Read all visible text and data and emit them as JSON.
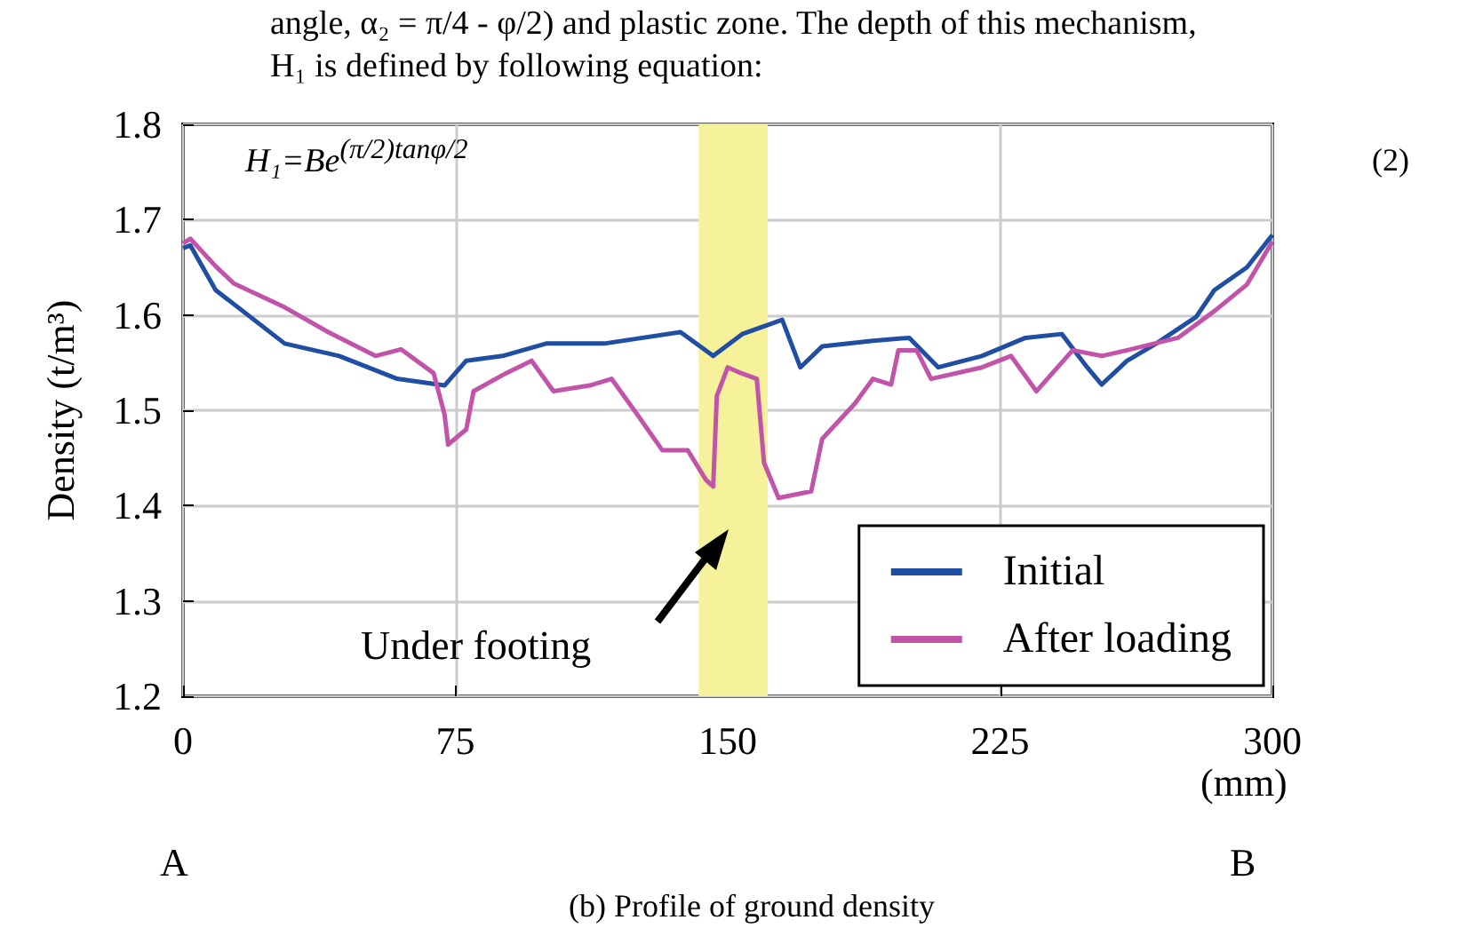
{
  "chart_data": {
    "type": "line",
    "xlabel": "(mm)",
    "ylabel": "Density (t/m³)",
    "xlim": [
      0,
      300
    ],
    "xticks": [
      0,
      75,
      150,
      225,
      300
    ],
    "ylim": [
      1.2,
      1.8
    ],
    "yticks": [
      1.2,
      1.3,
      1.4,
      1.5,
      1.6,
      1.7,
      1.8
    ],
    "grid": true,
    "legend": "bottom right",
    "marker": "none",
    "line_style": "solid",
    "series": [
      {
        "name": "Initial",
        "color": "#1f4ea3",
        "x": [
          0,
          2,
          9,
          28,
          43,
          59,
          72,
          78,
          88,
          100,
          116,
          137,
          146,
          154,
          165,
          170,
          176,
          190,
          200,
          208,
          220,
          232,
          242,
          249,
          253,
          260,
          268,
          279,
          284,
          293,
          300
        ],
        "values": [
          1.67,
          1.673,
          1.626,
          1.57,
          1.557,
          1.533,
          1.526,
          1.552,
          1.557,
          1.57,
          1.57,
          1.582,
          1.557,
          1.58,
          1.595,
          1.545,
          1.567,
          1.573,
          1.576,
          1.545,
          1.557,
          1.576,
          1.58,
          1.545,
          1.527,
          1.552,
          1.57,
          1.598,
          1.626,
          1.65,
          1.684
        ]
      },
      {
        "name": "After loading",
        "color": "#c153a8",
        "x": [
          0,
          2,
          9,
          14,
          28,
          40,
          53,
          60,
          69,
          72,
          73,
          78,
          80,
          89,
          96,
          102,
          112,
          118,
          125,
          132,
          139,
          144,
          146,
          147,
          150,
          153,
          158,
          160,
          164,
          173,
          176,
          185,
          190,
          195,
          197,
          202,
          206,
          220,
          228,
          235,
          245,
          253,
          260,
          274,
          284,
          293,
          300
        ],
        "values": [
          1.675,
          1.68,
          1.651,
          1.633,
          1.608,
          1.582,
          1.557,
          1.564,
          1.539,
          1.496,
          1.464,
          1.48,
          1.52,
          1.539,
          1.552,
          1.52,
          1.526,
          1.533,
          1.496,
          1.458,
          1.458,
          1.427,
          1.42,
          1.515,
          1.545,
          1.54,
          1.533,
          1.445,
          1.408,
          1.415,
          1.47,
          1.507,
          1.533,
          1.527,
          1.563,
          1.563,
          1.533,
          1.545,
          1.557,
          1.52,
          1.563,
          1.557,
          1.563,
          1.576,
          1.604,
          1.632,
          1.677
        ]
      }
    ],
    "bands": [
      {
        "axis": "x",
        "from": 142,
        "to": 161,
        "color": "#f6f29b"
      }
    ],
    "annotations": [
      "angle, α₂ = π/4 - φ/2) and plastic zone. The depth of this mechanism,",
      "H₁ is defined by following equation:",
      "H₁=Be$^{(π/2)tanφ/2}$",
      "(2)",
      "Under footing",
      "A",
      "B",
      "(b) Profile of ground density"
    ]
  }
}
